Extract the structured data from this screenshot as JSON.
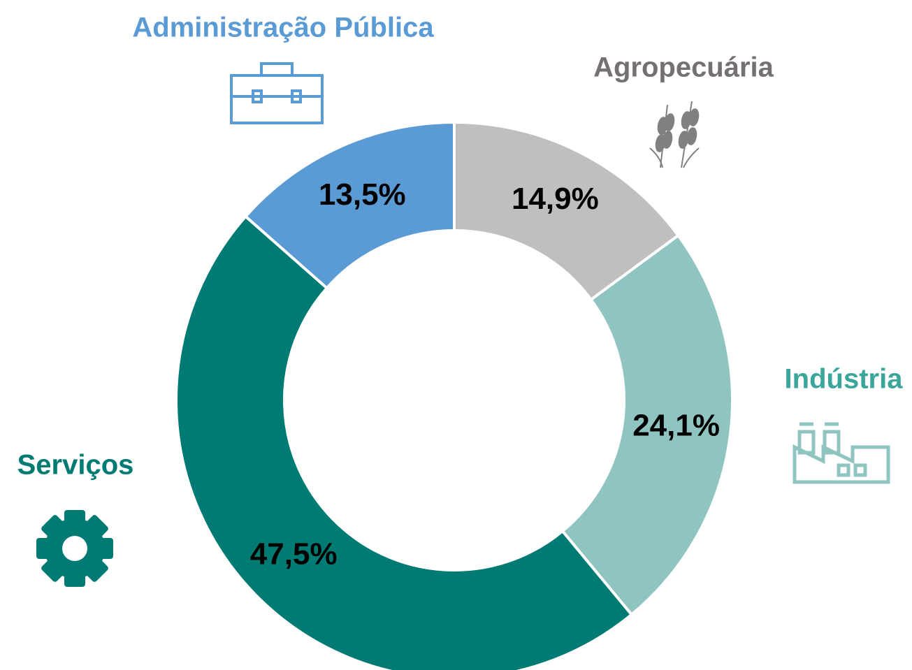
{
  "chart_data": {
    "type": "donut",
    "categories": [
      "Agropecuária",
      "Indústria",
      "Serviços",
      "Administração Pública"
    ],
    "values": [
      14.9,
      24.1,
      47.5,
      13.5
    ],
    "value_labels": [
      "14,9%",
      "24,1%",
      "47,5%",
      "13,5%"
    ],
    "colors": [
      "#bfbfbf",
      "#8fc4c0",
      "#007b73",
      "#5b9bd5"
    ]
  }
}
